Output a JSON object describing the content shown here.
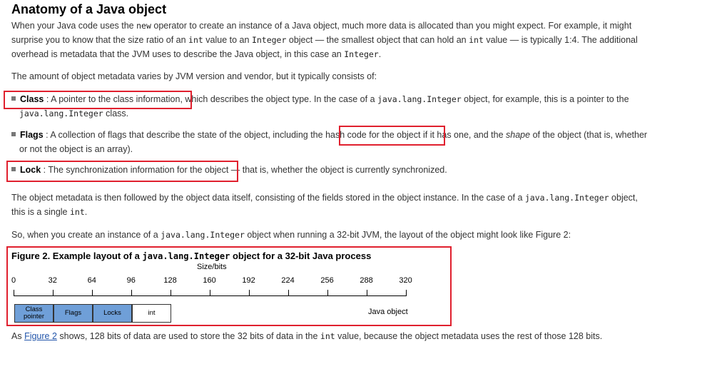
{
  "title": "Anatomy of a Java object",
  "p1": {
    "a": "When your Java code uses the ",
    "code_new": "new",
    "b": " operator to create an instance of a Java object, much more data is allocated than you might expect. For example, it might",
    "c": "surprise you to know that the size ratio of an ",
    "code_int": "int",
    "d": " value to an ",
    "code_integer": "Integer",
    "e": " object — the smallest object that can hold an ",
    "code_int2": "int",
    "f": " value — is typically 1:4. The additional",
    "g": "overhead is metadata that the JVM uses to describe the Java object, in this case an ",
    "code_integer2": "Integer",
    "h": "."
  },
  "p2": "The amount of object metadata varies by JVM version and vendor, but it typically consists of:",
  "bullets": {
    "class": {
      "term": "Class",
      "sep": " : ",
      "a": "A pointer to the class information,",
      "b": " which describes the object type. In the case of a ",
      "code": "java.lang.Integer",
      "c": " object, for example, this is a pointer to the",
      "code2": "java.lang.Integer",
      "d": " class."
    },
    "flags": {
      "term": "Flags",
      "sep": " : ",
      "a": "A collection of flags that describe the state of the object, including the ",
      "hl": "hash code for the object",
      "b": " if it has one, and the ",
      "em": "shape",
      "c": " of the object (that is, whether",
      "d": "or not the object is an array)."
    },
    "lock": {
      "term": "Lock",
      "sep": " : ",
      "a": "The synchronization information for the object",
      "b": " — that is, whether the object is currently synchronized."
    }
  },
  "p3": {
    "a": "The object metadata is then followed by the object data itself, consisting of the fields stored in the object instance. In the case of a ",
    "code": "java.lang.Integer",
    "b": " object,",
    "c": "this is a single ",
    "code2": "int",
    "d": "."
  },
  "p4": {
    "a": "So, when you create an instance of a ",
    "code": "java.lang.Integer",
    "b": " object when running a 32-bit JVM, the layout of the object might look like Figure 2:"
  },
  "figure": {
    "title_a": "Figure 2. Example layout of a ",
    "title_code": "java.lang.Integer",
    "title_b": " object for a 32-bit Java process",
    "axis_label": "Size/bits",
    "ticks": [
      "0",
      "32",
      "64",
      "96",
      "128",
      "160",
      "192",
      "224",
      "256",
      "288",
      "320"
    ],
    "segments": [
      {
        "label": "Class pointer",
        "bits": 32,
        "color": "#6f9fd8"
      },
      {
        "label": "Flags",
        "bits": 32,
        "color": "#6f9fd8"
      },
      {
        "label": "Locks",
        "bits": 32,
        "color": "#6f9fd8"
      },
      {
        "label": "int",
        "bits": 32,
        "color": "#ffffff"
      }
    ],
    "legend": "Java object"
  },
  "p5": {
    "a": "As ",
    "link": "Figure 2",
    "b": " shows, 128 bits of data are used to store the 32 bits of data in the ",
    "code": "int",
    "c": " value, because the object metadata uses the rest of those 128 bits."
  }
}
